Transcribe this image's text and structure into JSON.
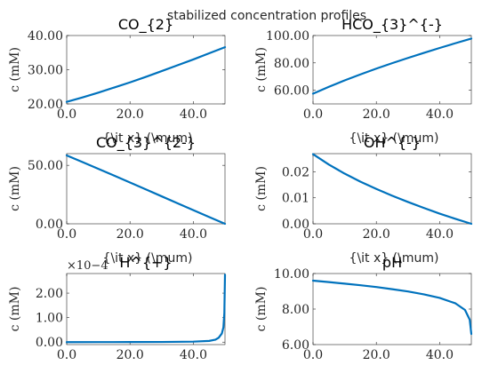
{
  "figure": {
    "suptitle": "stabilized concentration profiles",
    "line_color": "#0072BD",
    "axis_color": "#262626"
  },
  "chart_data": [
    {
      "type": "line",
      "title": "CO_{2}",
      "xlabel": "",
      "ylabel": "c (mM)",
      "xlim": [
        0,
        50
      ],
      "ylim": [
        20,
        40
      ],
      "xticks": [
        "0.0",
        "20.0",
        "40.0"
      ],
      "yticks": [
        "20.00",
        "30.00",
        "40.00"
      ],
      "exponent": "",
      "x": [
        0,
        5,
        10,
        15,
        20,
        25,
        30,
        35,
        40,
        45,
        50
      ],
      "y": [
        20.6,
        21.9,
        23.3,
        24.8,
        26.3,
        27.9,
        29.6,
        31.3,
        33.0,
        34.8,
        36.6
      ]
    },
    {
      "type": "line",
      "title": "HCO_{3}^{-}",
      "xlabel": "",
      "ylabel": "c (mM)",
      "xlim": [
        0,
        50
      ],
      "ylim": [
        50,
        100
      ],
      "xticks": [
        "0.0",
        "20.0",
        "40.0"
      ],
      "yticks": [
        "60.00",
        "80.00",
        "100.00"
      ],
      "exponent": "",
      "x": [
        0,
        5,
        10,
        15,
        20,
        25,
        30,
        35,
        40,
        45,
        50
      ],
      "y": [
        57.5,
        62.5,
        67.2,
        71.6,
        75.8,
        79.8,
        83.6,
        87.3,
        90.9,
        94.4,
        97.8
      ]
    },
    {
      "type": "line",
      "title": "CO_{3}^{2-}",
      "xlabel": "{\\it x} (\\mum)",
      "ylabel": "c (mM)",
      "xlim": [
        0,
        50
      ],
      "ylim": [
        0,
        60
      ],
      "xticks": [
        "0.0",
        "20.0",
        "40.0"
      ],
      "yticks": [
        "0.00",
        "50.00"
      ],
      "exponent": "",
      "x": [
        0,
        5,
        10,
        15,
        20,
        25,
        30,
        35,
        40,
        45,
        50
      ],
      "y": [
        58.5,
        52.8,
        47.0,
        41.2,
        35.3,
        29.4,
        23.5,
        17.6,
        11.7,
        5.8,
        0.0
      ]
    },
    {
      "type": "line",
      "title": "OH^{-}",
      "xlabel": "{\\it x} (\\mum)",
      "ylabel": "c (mM)",
      "xlim": [
        0,
        50
      ],
      "ylim": [
        0,
        0.027
      ],
      "xticks": [
        "0.0",
        "20.0",
        "40.0"
      ],
      "yticks": [
        "0.00",
        "0.01",
        "0.02"
      ],
      "exponent": "",
      "x": [
        0,
        5,
        10,
        15,
        20,
        25,
        30,
        35,
        40,
        45,
        50
      ],
      "y": [
        0.0268,
        0.0228,
        0.0193,
        0.0162,
        0.0134,
        0.0108,
        0.0084,
        0.0061,
        0.0039,
        0.0019,
        0.0
      ]
    },
    {
      "type": "line",
      "title": "H^{+}",
      "xlabel": "{\\it x} (\\mum)",
      "ylabel": "c (mM)",
      "xlim": [
        0,
        50
      ],
      "ylim": [
        -0.1,
        2.8
      ],
      "xticks": [
        "0.0",
        "20.0",
        "40.0"
      ],
      "yticks": [
        "0.00",
        "1.00",
        "2.00"
      ],
      "exponent": "×10−4",
      "x": [
        0,
        10,
        20,
        30,
        40,
        45,
        47,
        48,
        49,
        49.5,
        49.8,
        50
      ],
      "y": [
        0.0,
        0.001,
        0.003,
        0.006,
        0.02,
        0.05,
        0.1,
        0.18,
        0.35,
        0.6,
        1.2,
        2.75
      ]
    },
    {
      "type": "line",
      "title": "pH",
      "xlabel": "{\\it x} (\\mum)",
      "ylabel": "c (mM)",
      "xlim": [
        0,
        50
      ],
      "ylim": [
        6,
        10
      ],
      "xticks": [
        "0.0",
        "20.0",
        "40.0"
      ],
      "yticks": [
        "6.00",
        "8.00",
        "10.00"
      ],
      "exponent": "",
      "x": [
        0,
        5,
        10,
        15,
        20,
        25,
        30,
        35,
        40,
        45,
        48,
        49.5,
        50
      ],
      "y": [
        9.6,
        9.52,
        9.43,
        9.34,
        9.24,
        9.12,
        8.99,
        8.83,
        8.63,
        8.32,
        7.95,
        7.4,
        6.6
      ]
    }
  ]
}
